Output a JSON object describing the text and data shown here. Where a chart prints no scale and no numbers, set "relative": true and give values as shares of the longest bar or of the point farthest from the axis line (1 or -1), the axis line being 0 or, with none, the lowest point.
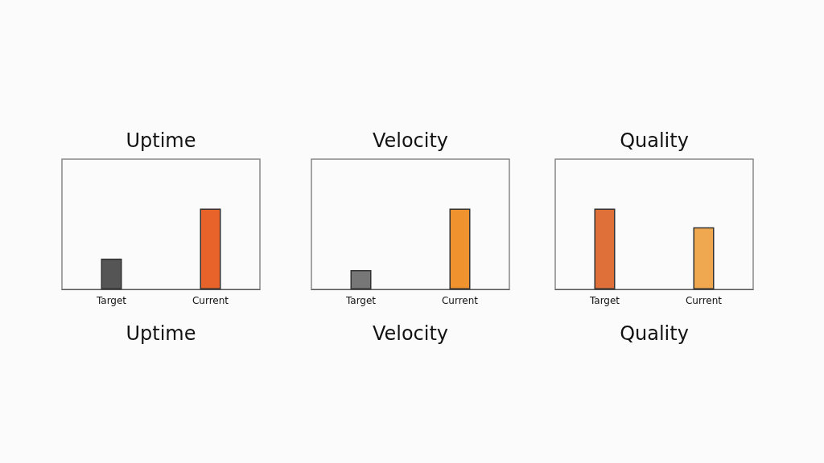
{
  "chart_data": [
    {
      "type": "bar",
      "title": "Uptime",
      "annotations": [
        "Uptime"
      ],
      "relative": true,
      "categories": [
        "Target",
        "Current"
      ],
      "values": [
        0.38,
        1
      ],
      "colors": [
        "#555555",
        "#e8632a"
      ]
    },
    {
      "type": "bar",
      "title": "Velocity",
      "annotations": [
        "Velocity"
      ],
      "relative": true,
      "categories": [
        "Target",
        "Current"
      ],
      "values": [
        0.24,
        1
      ],
      "colors": [
        "#777777",
        "#f0922e"
      ]
    },
    {
      "type": "bar",
      "title": "Quality",
      "annotations": [
        "Quality"
      ],
      "relative": true,
      "categories": [
        "Target",
        "Current"
      ],
      "values": [
        1,
        0.77
      ],
      "colors": [
        "#e0703a",
        "#f0a850"
      ]
    }
  ]
}
